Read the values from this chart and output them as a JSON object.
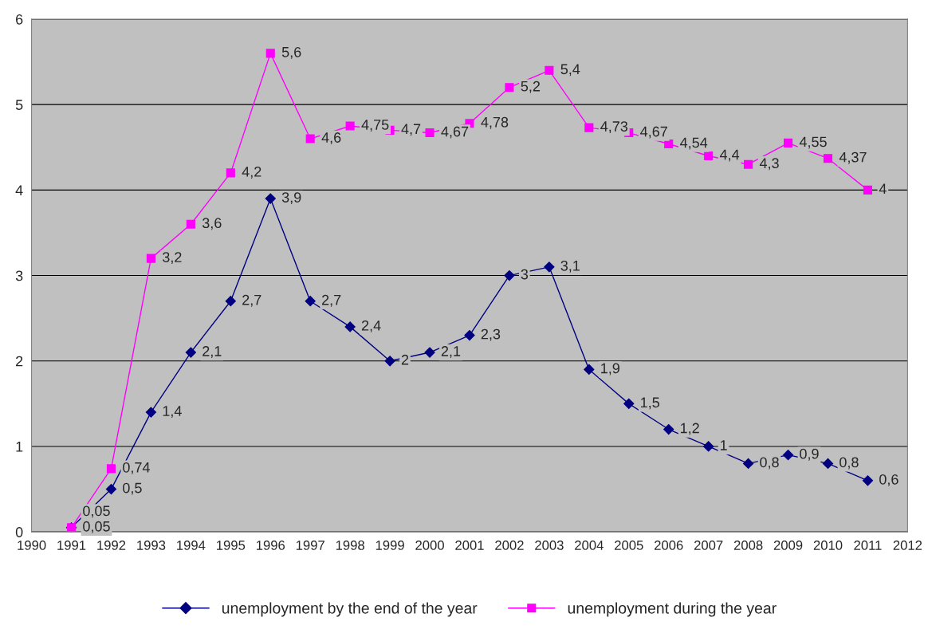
{
  "chart_data": {
    "type": "line",
    "x": [
      1991,
      1992,
      1993,
      1994,
      1995,
      1996,
      1997,
      1998,
      1999,
      2000,
      2001,
      2002,
      2003,
      2004,
      2005,
      2006,
      2007,
      2008,
      2009,
      2010,
      2011
    ],
    "series": [
      {
        "name": "unemployment by the end of the year",
        "color": "#000080",
        "marker": "diamond",
        "values": [
          0.05,
          0.5,
          1.4,
          2.1,
          2.7,
          3.9,
          2.7,
          2.4,
          2,
          2.1,
          2.3,
          3,
          3.1,
          1.9,
          1.5,
          1.2,
          1,
          0.8,
          0.9,
          0.8,
          0.6
        ],
        "value_labels": [
          "0,05",
          "0,5",
          "1,4",
          "2,1",
          "2,7",
          "3,9",
          "2,7",
          "2,4",
          "2",
          "2,1",
          "2,3",
          "3",
          "3,1",
          "1,9",
          "1,5",
          "1,2",
          "1",
          "0,8",
          "0,9",
          "0,8",
          "0,6"
        ]
      },
      {
        "name": "unemployment during the year",
        "color": "#ff00ff",
        "marker": "square",
        "values": [
          0.05,
          0.74,
          3.2,
          3.6,
          4.2,
          5.6,
          4.6,
          4.75,
          4.7,
          4.67,
          4.78,
          5.2,
          5.4,
          4.73,
          4.67,
          4.54,
          4.4,
          4.3,
          4.55,
          4.37,
          4
        ],
        "value_labels": [
          "0,05",
          "0,74",
          "3,2",
          "3,6",
          "4,2",
          "5,6",
          "4,6",
          "4,75",
          "4,7",
          "4,67",
          "4,78",
          "5,2",
          "5,4",
          "4,73",
          "4,67",
          "4,54",
          "4,4",
          "4,3",
          "4,55",
          "4,37",
          "4"
        ]
      }
    ],
    "xlim": [
      1990,
      2012
    ],
    "xticks": [
      1990,
      1991,
      1992,
      1993,
      1994,
      1995,
      1996,
      1997,
      1998,
      1999,
      2000,
      2001,
      2002,
      2003,
      2004,
      2005,
      2006,
      2007,
      2008,
      2009,
      2010,
      2011,
      2012
    ],
    "ylim": [
      0,
      6
    ],
    "yticks": [
      0,
      1,
      2,
      3,
      4,
      5,
      6
    ],
    "grid": "y",
    "legend": "bottom"
  }
}
